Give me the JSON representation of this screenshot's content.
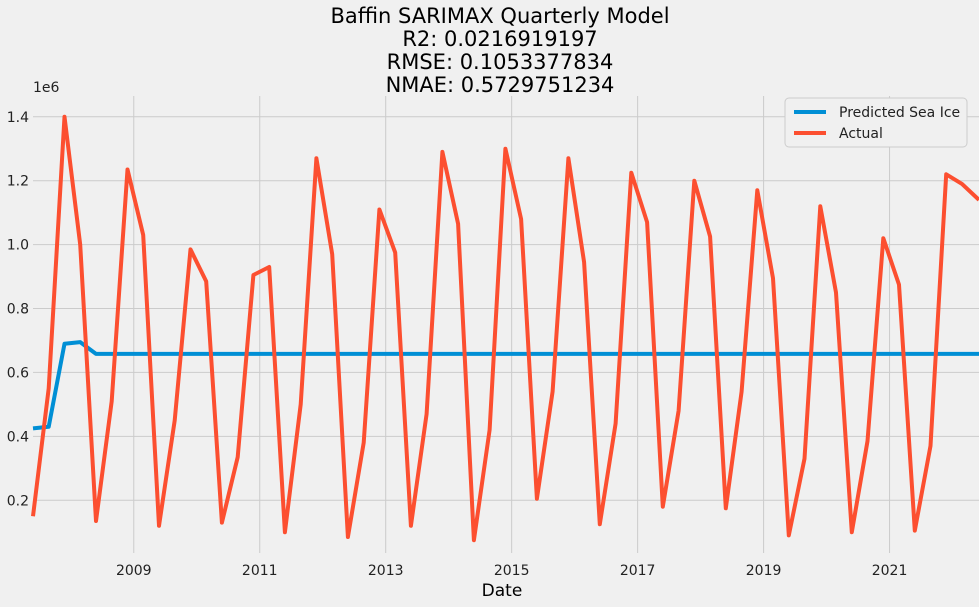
{
  "chart_data": {
    "type": "line",
    "title": "Baffin SARIMAX Quarterly Model",
    "subtitle_lines": [
      "R2: 0.0216919197",
      "RMSE: 0.1053377834",
      "NMAE: 0.5729751234"
    ],
    "xlabel": "Date",
    "ylabel": "",
    "y_scale_label": "1e6",
    "xlim": [
      2007.4,
      2022.42
    ],
    "ylim": [
      0.035,
      1.465
    ],
    "x_ticks": [
      "2009",
      "2011",
      "2013",
      "2015",
      "2017",
      "2019",
      "2021"
    ],
    "y_ticks": [
      "0.2",
      "0.4",
      "0.6",
      "0.8",
      "1.0",
      "1.2",
      "1.4"
    ],
    "grid": true,
    "legend_position": "top-right",
    "series": [
      {
        "name": "Predicted Sea Ice",
        "color": "#008fd5",
        "x": [
          2007.4,
          2007.65,
          2007.9,
          2008.15,
          2008.4,
          2022.42
        ],
        "y": [
          0.425,
          0.43,
          0.69,
          0.695,
          0.658,
          0.658
        ]
      },
      {
        "name": "Actual",
        "color": "#fc4f30",
        "x": [
          2007.4,
          2007.65,
          2007.9,
          2008.15,
          2008.4,
          2008.65,
          2008.9,
          2009.15,
          2009.4,
          2009.65,
          2009.9,
          2010.15,
          2010.4,
          2010.65,
          2010.9,
          2011.15,
          2011.4,
          2011.65,
          2011.9,
          2012.15,
          2012.4,
          2012.65,
          2012.9,
          2013.15,
          2013.4,
          2013.65,
          2013.9,
          2014.15,
          2014.4,
          2014.65,
          2014.9,
          2015.15,
          2015.4,
          2015.65,
          2015.9,
          2016.15,
          2016.4,
          2016.65,
          2016.9,
          2017.15,
          2017.4,
          2017.65,
          2017.9,
          2018.15,
          2018.4,
          2018.65,
          2018.9,
          2019.15,
          2019.4,
          2019.65,
          2019.9,
          2020.15,
          2020.4,
          2020.65,
          2020.9,
          2021.15,
          2021.4,
          2021.65,
          2021.9,
          2022.15,
          2022.42
        ],
        "y": [
          0.15,
          0.55,
          1.4,
          1.0,
          0.135,
          0.51,
          1.235,
          1.03,
          0.12,
          0.45,
          0.985,
          0.885,
          0.13,
          0.335,
          0.905,
          0.93,
          0.1,
          0.5,
          1.27,
          0.97,
          0.085,
          0.38,
          1.11,
          0.975,
          0.12,
          0.47,
          1.29,
          1.065,
          0.075,
          0.42,
          1.3,
          1.08,
          0.205,
          0.54,
          1.27,
          0.945,
          0.125,
          0.44,
          1.225,
          1.07,
          0.18,
          0.48,
          1.2,
          1.025,
          0.175,
          0.54,
          1.17,
          0.895,
          0.09,
          0.33,
          1.12,
          0.85,
          0.1,
          0.385,
          1.02,
          0.875,
          0.105,
          0.37,
          1.22,
          1.19,
          1.14
        ]
      }
    ]
  }
}
